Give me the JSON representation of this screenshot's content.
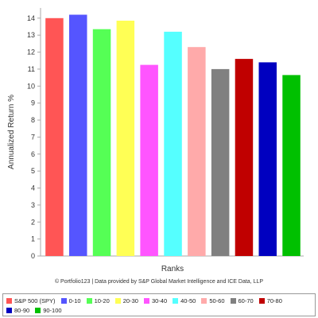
{
  "chart_data": {
    "type": "bar",
    "categories": [
      "S&P 500 (SPY)",
      "0-10",
      "10-20",
      "20-30",
      "30-40",
      "40-50",
      "50-60",
      "60-70",
      "70-80",
      "80-90",
      "90-100"
    ],
    "values": [
      14.0,
      14.2,
      13.35,
      13.85,
      11.25,
      13.2,
      12.3,
      11.0,
      11.6,
      11.4,
      10.65
    ],
    "colors": [
      "#ff5555",
      "#5555ff",
      "#55ff55",
      "#ffff55",
      "#ff55ff",
      "#55ffff",
      "#ffaaaa",
      "#808080",
      "#c00000",
      "#0000c0",
      "#00c000"
    ],
    "xlabel": "Ranks",
    "ylabel": "Annualized Return %",
    "ylim": [
      0,
      14.6
    ],
    "yticks": [
      "0",
      "1",
      "2",
      "3",
      "4",
      "5",
      "6",
      "7",
      "8",
      "9",
      "10",
      "11",
      "12",
      "13",
      "14"
    ],
    "grid": false,
    "legend_position": "bottom"
  },
  "credit": "© Portfolio123 | Data provided by S&P Global Market Intelligence and ICE Data, LLP"
}
